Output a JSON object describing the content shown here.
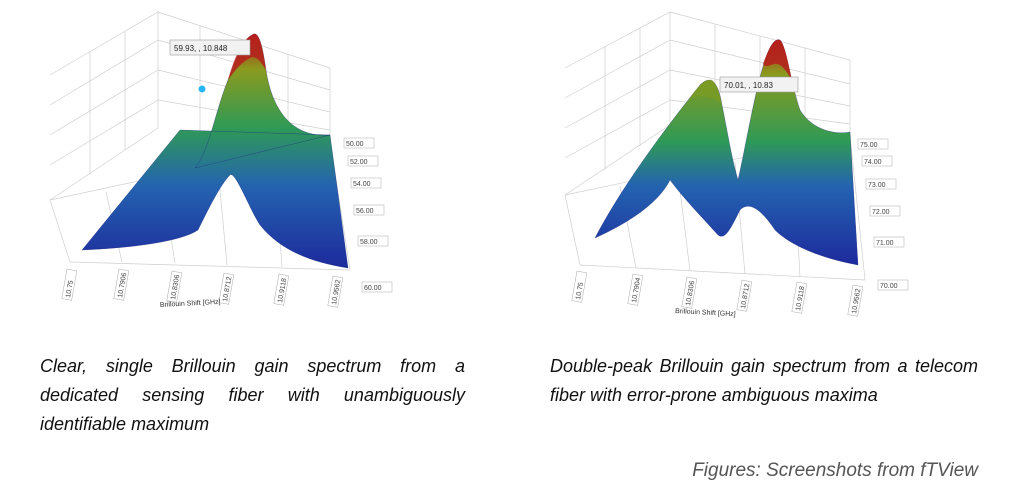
{
  "chart_data": [
    {
      "type": "surface3d",
      "xlabel": "Brillouin Shift [GHz]",
      "x_ticks": [
        "10.75",
        "10.7906",
        "10.8306",
        "10.8712",
        "10.9118",
        "10.9562"
      ],
      "y_ticks": [
        "60.00",
        "58.00",
        "56.00",
        "54.00",
        "52.00",
        "50.00"
      ],
      "peak_label": "59.93, , 10.848",
      "peaks": [
        {
          "shift_ghz": 10.848,
          "relative_height": 1.0
        }
      ],
      "colors": {
        "low": "#1d2a9c",
        "mid": "#2f9a56",
        "high": "#b51f1c"
      }
    },
    {
      "type": "surface3d",
      "xlabel": "Brillouin Shift [GHz]",
      "x_ticks": [
        "10.75",
        "10.7904",
        "10.8306",
        "10.8712",
        "10.9118",
        "10.9562"
      ],
      "y_ticks": [
        "70.00",
        "71.00",
        "72.00",
        "73.00",
        "74.00",
        "75.00"
      ],
      "peak_label": "70.01, , 10.83",
      "peaks": [
        {
          "shift_ghz": 10.76,
          "relative_height": 0.62
        },
        {
          "shift_ghz": 10.83,
          "relative_height": 1.0
        }
      ],
      "colors": {
        "low": "#1d2a9c",
        "mid": "#2f9a56",
        "high": "#b51f1c"
      }
    }
  ],
  "captions": {
    "left": "Clear, single Brillouin gain spectrum from a dedicated sensing fiber with unambiguously identifiable maximum",
    "right": "Double-peak Brillouin gain spectrum from a telecom fiber with error-prone ambiguous maxima"
  },
  "footnote": "Figures: Screenshots from fTView"
}
